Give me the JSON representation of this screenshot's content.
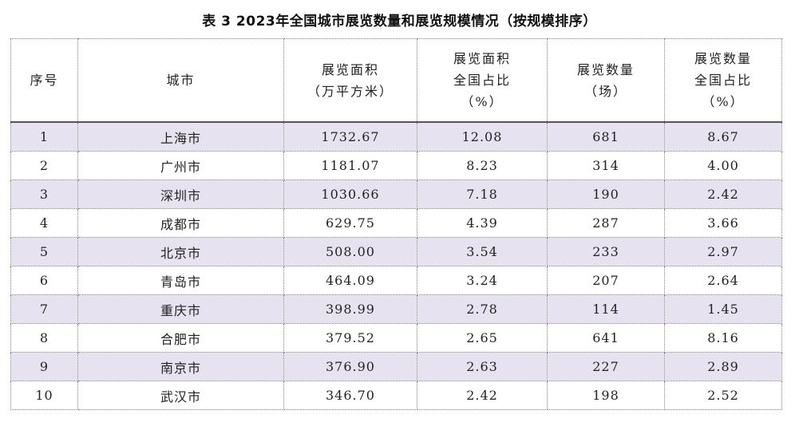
{
  "caption": "表 3 2023年全国城市展览数量和展览规模情况（按规模排序）",
  "headers": {
    "rank": [
      "序号"
    ],
    "city": [
      "城市"
    ],
    "area": [
      "展览面积",
      "（万平方米）"
    ],
    "area_share": [
      "展览面积",
      "全国占比",
      "（%）"
    ],
    "count": [
      "展览数量",
      "（场）"
    ],
    "count_share": [
      "展览数量",
      "全国占比",
      "（%）"
    ]
  },
  "rows": [
    {
      "rank": "1",
      "city": "上海市",
      "area": "1732.67",
      "area_share": "12.08",
      "count": "681",
      "count_share": "8.67"
    },
    {
      "rank": "2",
      "city": "广州市",
      "area": "1181.07",
      "area_share": "8.23",
      "count": "314",
      "count_share": "4.00"
    },
    {
      "rank": "3",
      "city": "深圳市",
      "area": "1030.66",
      "area_share": "7.18",
      "count": "190",
      "count_share": "2.42"
    },
    {
      "rank": "4",
      "city": "成都市",
      "area": "629.75",
      "area_share": "4.39",
      "count": "287",
      "count_share": "3.66"
    },
    {
      "rank": "5",
      "city": "北京市",
      "area": "508.00",
      "area_share": "3.54",
      "count": "233",
      "count_share": "2.97"
    },
    {
      "rank": "6",
      "city": "青岛市",
      "area": "464.09",
      "area_share": "3.24",
      "count": "207",
      "count_share": "2.64"
    },
    {
      "rank": "7",
      "city": "重庆市",
      "area": "398.99",
      "area_share": "2.78",
      "count": "114",
      "count_share": "1.45"
    },
    {
      "rank": "8",
      "city": "合肥市",
      "area": "379.52",
      "area_share": "2.65",
      "count": "641",
      "count_share": "8.16"
    },
    {
      "rank": "9",
      "city": "南京市",
      "area": "376.90",
      "area_share": "2.63",
      "count": "227",
      "count_share": "2.89"
    },
    {
      "rank": "10",
      "city": "武汉市",
      "area": "346.70",
      "area_share": "2.42",
      "count": "198",
      "count_share": "2.52"
    }
  ],
  "colors": {
    "shaded_row": "#e6e2ef",
    "border": "#7d7d7d"
  }
}
